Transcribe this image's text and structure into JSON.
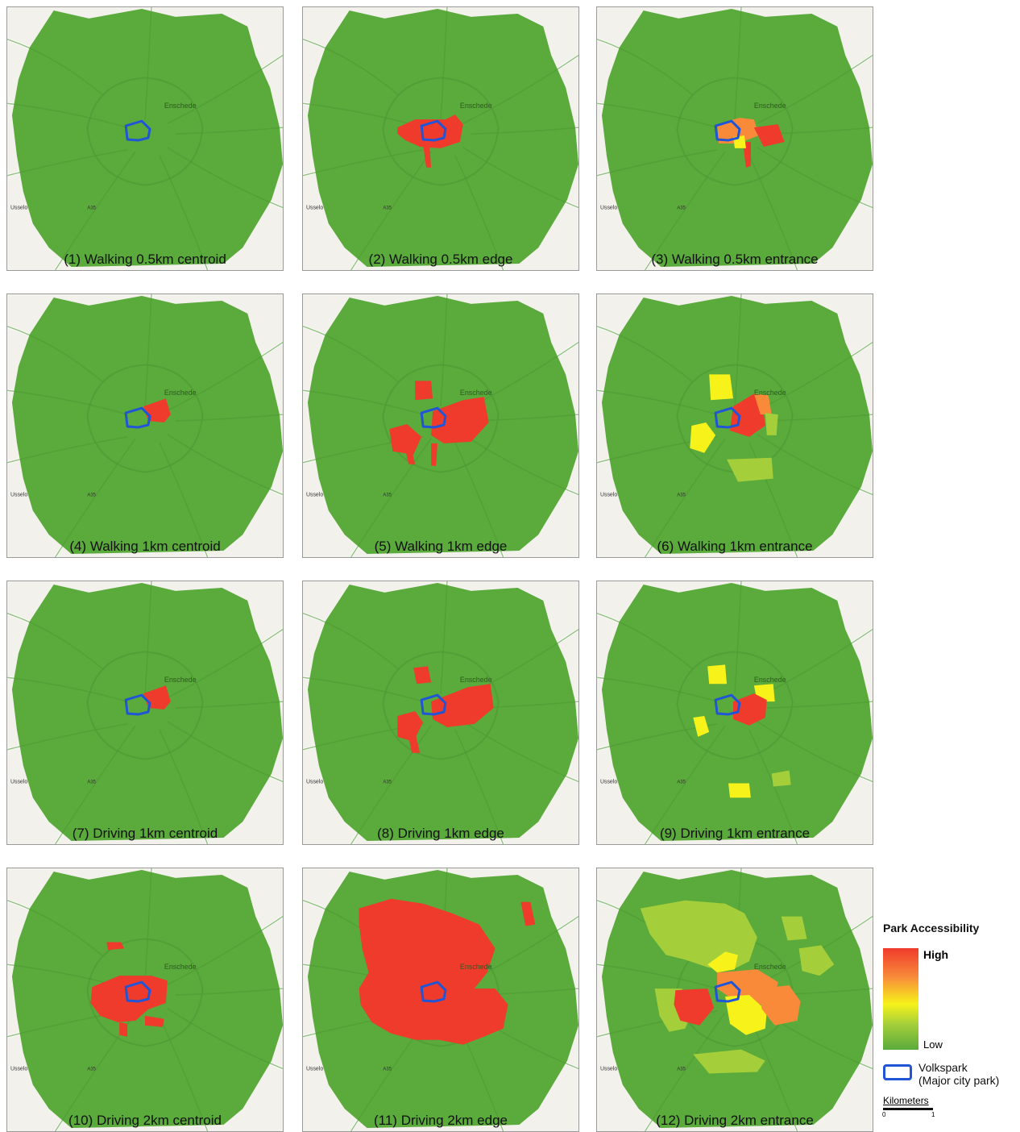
{
  "panels": [
    {
      "caption": "(1) Walking 0.5km centroid",
      "pattern": "none"
    },
    {
      "caption": "(2) Walking 0.5km edge",
      "pattern": "w05edge"
    },
    {
      "caption": "(3) Walking 0.5km entrance",
      "pattern": "w05ent"
    },
    {
      "caption": "(4) Walking 1km centroid",
      "pattern": "c1"
    },
    {
      "caption": "(5) Walking 1km edge",
      "pattern": "w1edge"
    },
    {
      "caption": "(6) Walking 1km entrance",
      "pattern": "w1ent"
    },
    {
      "caption": "(7) Driving 1km centroid",
      "pattern": "c1"
    },
    {
      "caption": "(8) Driving 1km edge",
      "pattern": "d1edge"
    },
    {
      "caption": "(9) Driving 1km entrance",
      "pattern": "d1ent"
    },
    {
      "caption": "(10) Driving 2km centroid",
      "pattern": "d2cent"
    },
    {
      "caption": "(11) Driving 2km edge",
      "pattern": "d2edge"
    },
    {
      "caption": "(12) Driving 2km entrance",
      "pattern": "d2ent"
    }
  ],
  "map_labels": {
    "town": "Enschede",
    "district": "Usselo",
    "road": "A35"
  },
  "legend": {
    "title": "Park Accessibility",
    "high": "High",
    "low": "Low",
    "park_name": "Volkspark",
    "park_desc": "(Major city park)",
    "scale_label": "Kilometers",
    "scale_ticks": [
      "0",
      "1"
    ]
  },
  "colors": {
    "base": "#5aaa3c",
    "high": "#ef3b2c",
    "mid_high": "#f88a3a",
    "mid": "#f6f21a",
    "low_mid": "#a4cf3a",
    "park_outline": "#1f55d6",
    "background_map": "#f3f1ec"
  }
}
